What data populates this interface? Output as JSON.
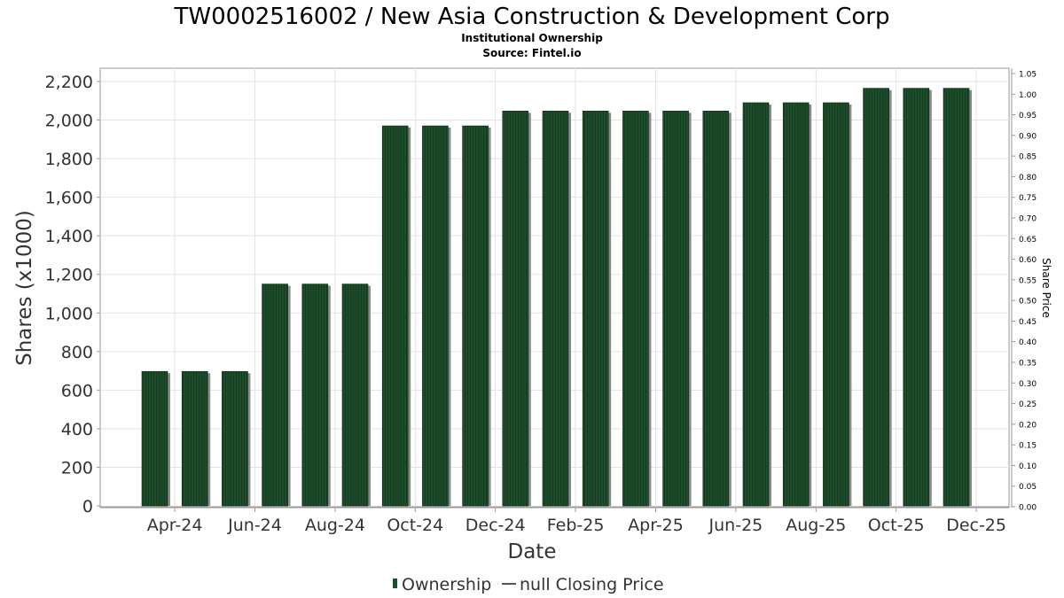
{
  "chart_data": {
    "type": "bar",
    "title": "TW0002516002 / New Asia Construction & Development Corp",
    "subtitle_lines": [
      "Institutional Ownership",
      "Source: Fintel.io"
    ],
    "xlabel": "Date",
    "ylabel": "Shares (x1000)",
    "y2label": "Share Price",
    "ylim": [
      0,
      2250
    ],
    "y2lim": [
      0,
      1.05
    ],
    "yticks": [
      "0",
      "200",
      "400",
      "600",
      "800",
      "1,000",
      "1,200",
      "1,400",
      "1,600",
      "1,800",
      "2,000",
      "2,200"
    ],
    "ytick_values": [
      0,
      200,
      400,
      600,
      800,
      1000,
      1200,
      1400,
      1600,
      1800,
      2000,
      2200
    ],
    "y2ticks": [
      "0.00",
      "0.05",
      "0.10",
      "0.15",
      "0.20",
      "0.25",
      "0.30",
      "0.35",
      "0.40",
      "0.45",
      "0.50",
      "0.55",
      "0.60",
      "0.65",
      "0.70",
      "0.75",
      "0.80",
      "0.85",
      "0.90",
      "0.95",
      "1.00",
      "1.05"
    ],
    "y2tick_values": [
      0,
      0.05,
      0.1,
      0.15,
      0.2,
      0.25,
      0.3,
      0.35,
      0.4,
      0.45,
      0.5,
      0.55,
      0.6,
      0.65,
      0.7,
      0.75,
      0.8,
      0.85,
      0.9,
      0.95,
      1.0,
      1.05
    ],
    "xtick_labels": [
      "Apr-24",
      "Jun-24",
      "Aug-24",
      "Oct-24",
      "Dec-24",
      "Feb-25",
      "Apr-25",
      "Jun-25",
      "Aug-25",
      "Oct-25",
      "Dec-25"
    ],
    "xtick_bar_index": [
      0.5,
      2.5,
      4.5,
      6.5,
      8.5,
      10.5,
      12.5,
      14.5,
      16.5,
      18.5,
      20.5
    ],
    "series": [
      {
        "name": "Ownership",
        "color": "#1e4d2b",
        "values": [
          697,
          697,
          697,
          1150,
          1150,
          1150,
          1970,
          1970,
          1970,
          2047,
          2047,
          2047,
          2047,
          2047,
          2047,
          2090,
          2090,
          2090,
          2165,
          2165,
          2165
        ]
      }
    ],
    "legend": {
      "placement": "bottom-center",
      "items": [
        {
          "label": "Ownership",
          "marker": "bar",
          "color": "#1e4d2b"
        },
        {
          "label": "null Closing Price",
          "marker": "line",
          "color": "#555555"
        }
      ]
    },
    "grid": true
  }
}
